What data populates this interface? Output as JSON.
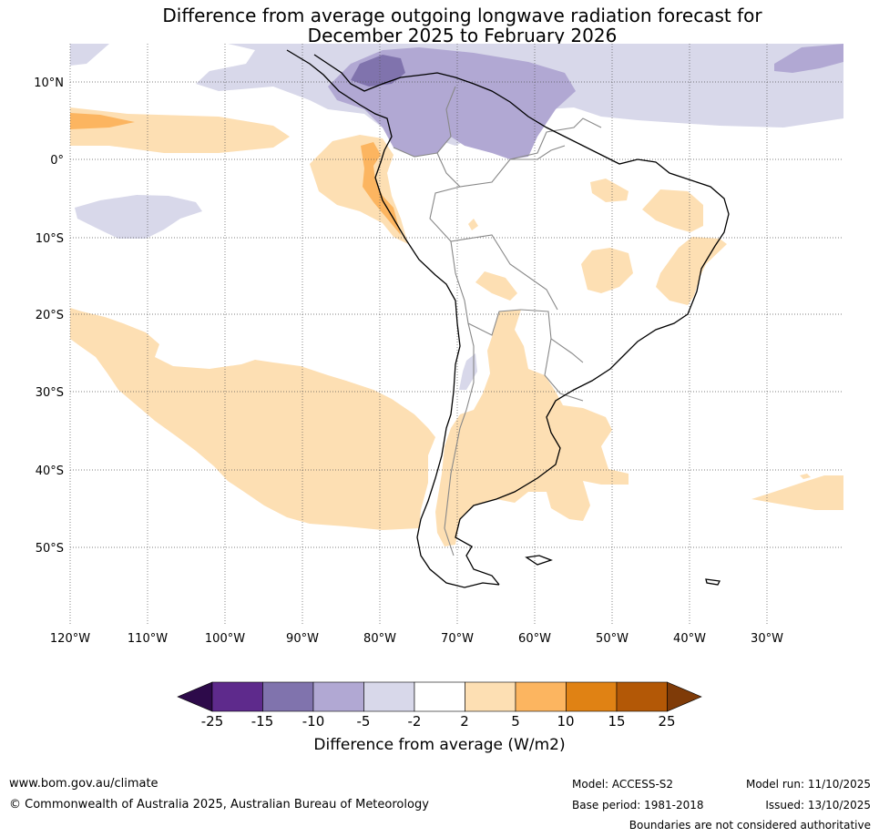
{
  "title": {
    "line1": "Difference from average outgoing longwave radiation forecast for",
    "line2": "December 2025 to February 2026"
  },
  "map": {
    "latitude_labels": [
      "10°N",
      "0°",
      "10°S",
      "20°S",
      "30°S",
      "40°S",
      "50°S"
    ],
    "longitude_labels": [
      "120°W",
      "110°W",
      "100°W",
      "90°W",
      "80°W",
      "70°W",
      "60°W",
      "50°W",
      "40°W",
      "30°W"
    ]
  },
  "colorbar": {
    "ticks": [
      "-25",
      "-15",
      "-10",
      "-5",
      "-2",
      "2",
      "5",
      "10",
      "15",
      "25"
    ],
    "colors": [
      "#2d0a4a",
      "#5e2a8c",
      "#8073ad",
      "#b1a8d3",
      "#d8d8ea",
      "#ffffff",
      "#fddfb3",
      "#fcb560",
      "#e08214",
      "#b35806",
      "#7f3b08"
    ],
    "label": "Difference from average (W/m2)"
  },
  "footer": {
    "website": "www.bom.gov.au/climate",
    "copyright": "© Commonwealth of Australia 2025, Australian Bureau of Meteorology",
    "model": "Model: ACCESS-S2",
    "base_period": "Base period: 1981-2018",
    "model_run": "Model run: 11/10/2025",
    "issued": "Issued: 13/10/2025",
    "disclaimer": "Boundaries are not considered authoritative"
  }
}
